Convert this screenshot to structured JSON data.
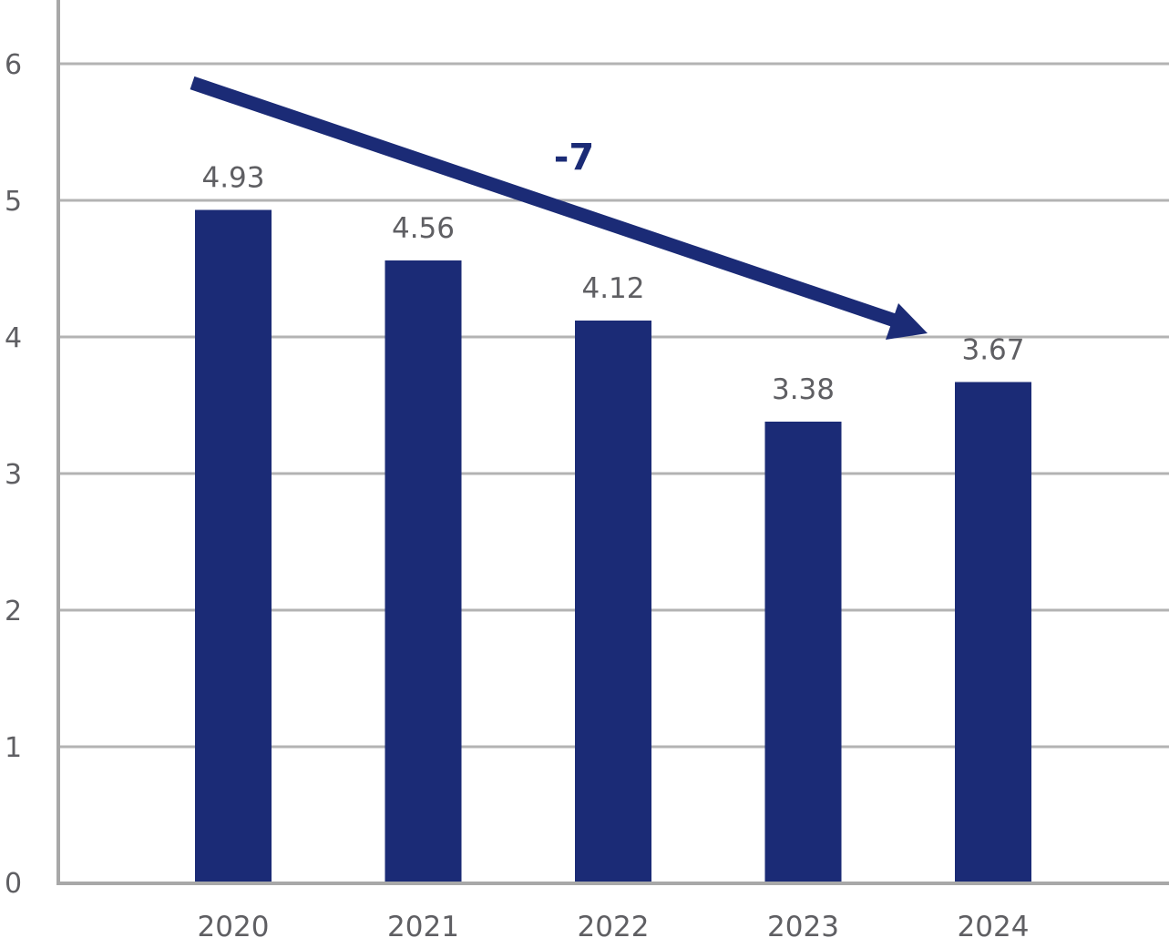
{
  "chart_data": {
    "type": "bar",
    "categories": [
      "2020",
      "2021",
      "2022",
      "2023",
      "2024"
    ],
    "values": [
      4.93,
      4.56,
      4.12,
      3.38,
      3.67
    ],
    "data_labels": [
      "4.93",
      "4.56",
      "4.12",
      "3.38",
      "3.67"
    ],
    "title": "",
    "xlabel": "",
    "ylabel": "",
    "ylim": [
      0,
      6
    ],
    "yticks": [
      "0",
      "1",
      "2",
      "3",
      "4",
      "5",
      "6"
    ],
    "grid": true,
    "legend": "none",
    "annotation": {
      "text": "-7",
      "type": "downward-trend-arrow",
      "from_category": "2020",
      "to_category": "2024"
    },
    "colors": {
      "bar": "#1b2b76",
      "arrow": "#1b2b76",
      "grid": "#b3b3b3",
      "axis": "#a8a8a8",
      "label": "#5f5f63"
    }
  }
}
